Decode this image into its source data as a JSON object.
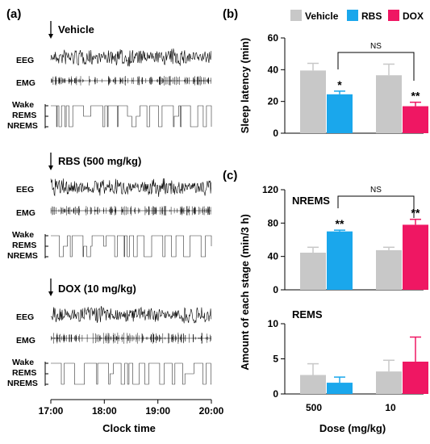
{
  "panel_a": {
    "label": "(a)",
    "recordings": [
      {
        "title": "Vehicle",
        "eeg_label": "EEG",
        "emg_label": "EMG",
        "states": [
          "Wake",
          "REMS",
          "NREMS"
        ]
      },
      {
        "title": "RBS (500 mg/kg)",
        "eeg_label": "EEG",
        "emg_label": "EMG",
        "states": [
          "Wake",
          "REMS",
          "NREMS"
        ]
      },
      {
        "title": "DOX (10 mg/kg)",
        "eeg_label": "EEG",
        "emg_label": "EMG",
        "states": [
          "Wake",
          "REMS",
          "NREMS"
        ]
      }
    ],
    "time_ticks": [
      "17:00",
      "18:00",
      "19:00",
      "20:00"
    ],
    "xlabel": "Clock time"
  },
  "legend": [
    {
      "name": "Vehicle",
      "color": "#c8c8c8"
    },
    {
      "name": "RBS",
      "color": "#1aa7ec"
    },
    {
      "name": "DOX",
      "color": "#ef1763"
    }
  ],
  "chart_data": [
    {
      "panel": "(b)",
      "type": "bar",
      "ylabel": "Sleep latency (min)",
      "ylim": [
        0,
        60
      ],
      "yticks": [
        "0",
        "20",
        "40",
        "60"
      ],
      "groups": [
        {
          "bars": [
            {
              "series": "Vehicle",
              "value": 39.5,
              "error": 4.5,
              "sig": ""
            },
            {
              "series": "RBS",
              "value": 24.5,
              "error": 2,
              "sig": "*"
            }
          ]
        },
        {
          "bars": [
            {
              "series": "Vehicle",
              "value": 36.5,
              "error": 7,
              "sig": ""
            },
            {
              "series": "DOX",
              "value": 17,
              "error": 2.5,
              "sig": "**"
            }
          ]
        }
      ],
      "comparison": "NS"
    },
    {
      "panel": "(c)",
      "type": "bar",
      "subtitle": "NREMS",
      "ylim": [
        0,
        120
      ],
      "yticks": [
        "0",
        "40",
        "80",
        "120"
      ],
      "groups": [
        {
          "bars": [
            {
              "series": "Vehicle",
              "value": 44.5,
              "error": 6.5,
              "sig": ""
            },
            {
              "series": "RBS",
              "value": 70,
              "error": 1.5,
              "sig": "**"
            }
          ]
        },
        {
          "bars": [
            {
              "series": "Vehicle",
              "value": 47.5,
              "error": 3.5,
              "sig": ""
            },
            {
              "series": "DOX",
              "value": 78,
              "error": 6.5,
              "sig": "**"
            }
          ]
        }
      ],
      "comparison": "NS"
    },
    {
      "panel": "(c)",
      "type": "bar",
      "subtitle": "REMS",
      "ylim": [
        0,
        10
      ],
      "yticks": [
        "0",
        "5",
        "10"
      ],
      "categories": [
        "500",
        "10"
      ],
      "xlabel": "Dose (mg/kg)",
      "groups": [
        {
          "bars": [
            {
              "series": "Vehicle",
              "value": 2.7,
              "error": 1.6,
              "sig": ""
            },
            {
              "series": "RBS",
              "value": 1.6,
              "error": 0.8,
              "sig": ""
            }
          ]
        },
        {
          "bars": [
            {
              "series": "Vehicle",
              "value": 3.2,
              "error": 1.6,
              "sig": ""
            },
            {
              "series": "DOX",
              "value": 4.6,
              "error": 3.5,
              "sig": ""
            }
          ]
        }
      ]
    }
  ],
  "shared_ylabel_c": "Amount of each stage (min/3 h)"
}
